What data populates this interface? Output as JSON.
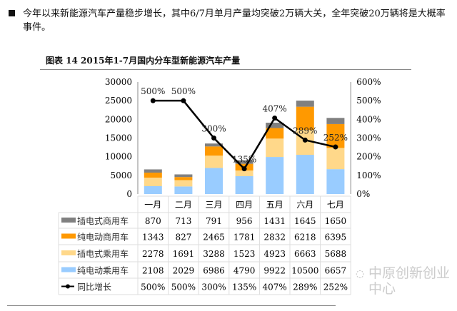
{
  "paragraph": "今年以来新能源汽车产量稳步增长，其中6/7月单月产量均突破2万辆大关，全年突破20万辆将是大概率事件。",
  "caption": "图表 14 2015年1-7月国内分车型新能源汽车产量",
  "watermark": "中原创新创业中心",
  "chart_data": {
    "type": "bar",
    "stacked": true,
    "categories": [
      "一月",
      "二月",
      "三月",
      "四月",
      "五月",
      "六月",
      "七月"
    ],
    "series": [
      {
        "name": "纯电动乘用车",
        "color": "#99ccff",
        "values": [
          2108,
          2029,
          6986,
          4790,
          9922,
          10500,
          6657
        ]
      },
      {
        "name": "插电式乘用车",
        "color": "#ffd88a",
        "values": [
          2278,
          1691,
          3288,
          1523,
          4923,
          6663,
          5688
        ]
      },
      {
        "name": "纯电动商用车",
        "color": "#ff9900",
        "values": [
          1343,
          827,
          2465,
          1781,
          2832,
          6218,
          6395
        ]
      },
      {
        "name": "插电式商用车",
        "color": "#808080",
        "values": [
          870,
          713,
          791,
          956,
          1431,
          1645,
          1650
        ]
      }
    ],
    "line": {
      "name": "同比增长",
      "color": "#000000",
      "values": [
        500,
        500,
        300,
        135,
        407,
        289,
        252
      ],
      "labels": [
        "500%",
        "500%",
        "300%",
        "135%",
        "407%",
        "289%",
        "252%"
      ]
    },
    "y_left": {
      "min": 0,
      "max": 30000,
      "ticks": [
        "0",
        "5000",
        "10000",
        "15000",
        "20000",
        "25000",
        "30000"
      ]
    },
    "y_right": {
      "min": 0,
      "max": 600,
      "ticks": [
        "0%",
        "100%",
        "200%",
        "300%",
        "400%",
        "500%",
        "600%"
      ]
    },
    "table_order": [
      3,
      2,
      1,
      0
    ],
    "grid": false,
    "legend": "data-table"
  }
}
